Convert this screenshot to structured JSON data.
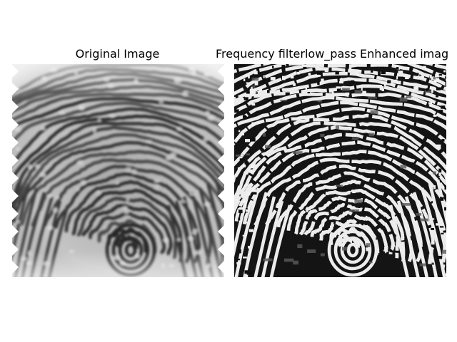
{
  "figure": {
    "panels": [
      {
        "title": "Original Image",
        "style": "grayscale-smooth",
        "background": "#c8c8c8"
      },
      {
        "title": "Frequency filterlow_pass Enhanced imag",
        "style": "binarized-high-contrast",
        "background": "#111111"
      }
    ]
  },
  "colors": {
    "page_background": "#ffffff",
    "ridge_dark": "#1a1a1a",
    "ridge_light": "#eeeeee",
    "title_text": "#000000"
  }
}
